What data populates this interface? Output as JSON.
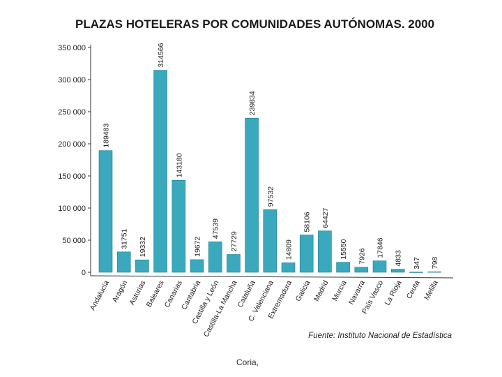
{
  "chart_data": {
    "type": "bar",
    "title": "PLAZAS HOTELERAS POR COMUNIDADES AUTÓNOMAS. 2000",
    "source": "Fuente: Instituto Nacional de Estadística",
    "bar_color": "#3aa8bd",
    "ylim": [
      0,
      350000
    ],
    "yticks": [
      0,
      50000,
      100000,
      150000,
      200000,
      250000,
      300000,
      350000
    ],
    "ytick_labels": [
      "0",
      "50 000",
      "100 000",
      "150 000",
      "200 000",
      "250 000",
      "300 000",
      "350 000"
    ],
    "categories": [
      "Andalucía",
      "Aragón",
      "Asturias",
      "Baleares",
      "Canarias",
      "Cantabria",
      "Castilla y León",
      "Castilla-La Mancha",
      "Cataluña",
      "C. Valenciana",
      "Extremadura",
      "Galicia",
      "Madrid",
      "Murcia",
      "Navarra",
      "País Vasco",
      "La Rioja",
      "Ceuta",
      "Melilla"
    ],
    "values": [
      189483,
      31751,
      19332,
      314566,
      143180,
      19672,
      47539,
      27729,
      239834,
      97532,
      14809,
      58106,
      64427,
      15550,
      7926,
      17846,
      4833,
      347,
      798
    ],
    "value_labels": [
      "189483",
      "31751",
      "19332",
      "314566",
      "143180",
      "19672",
      "47539",
      "27729",
      "239834",
      "97532",
      "14809",
      "58106",
      "64427",
      "15550",
      "7926",
      "17846",
      "4833",
      "347",
      "798"
    ],
    "grid": false,
    "legend": "none"
  },
  "caption": "Coria,"
}
